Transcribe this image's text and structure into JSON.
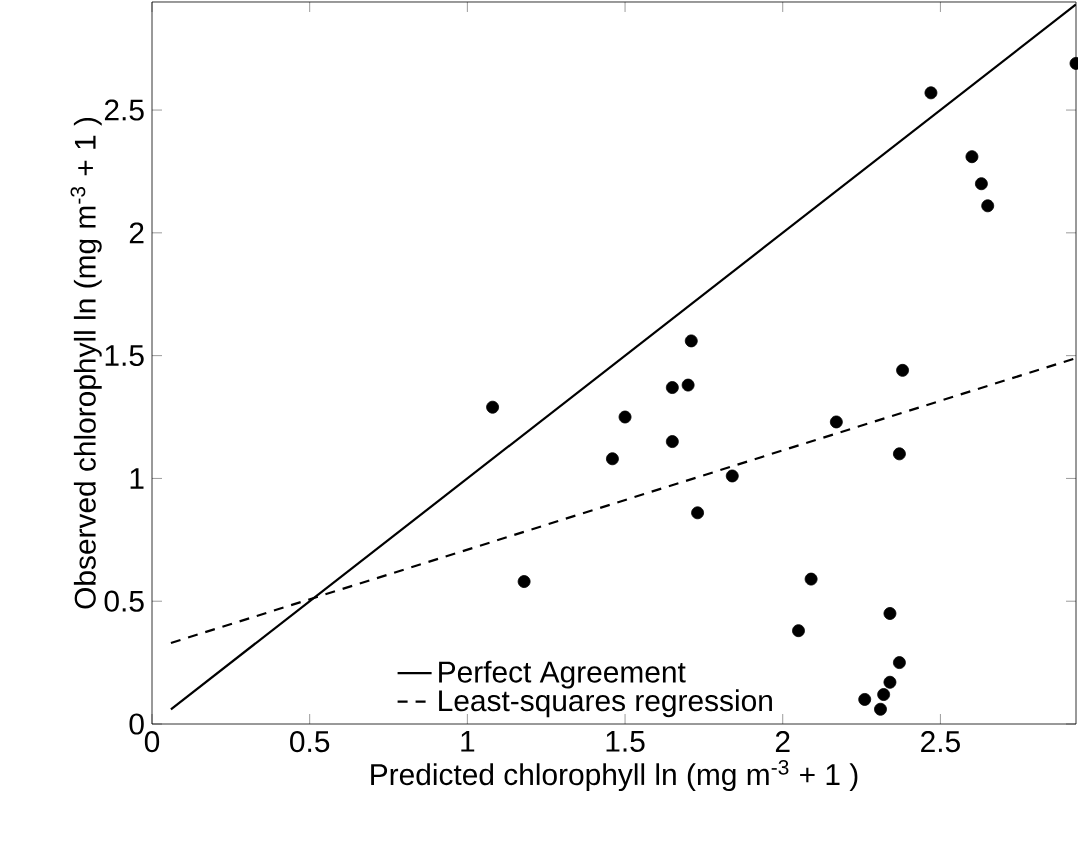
{
  "chart_data": {
    "type": "scatter",
    "xlabel": "Predicted chlorophyll ln (mg m$^{-3}$ + 1 )",
    "ylabel": "Observed chlorophyll ln (mg m$^{-3}$ + 1 )",
    "xlim": [
      0,
      2.93
    ],
    "ylim": [
      0,
      2.94
    ],
    "xticks": [
      0,
      0.5,
      1,
      1.5,
      2,
      2.5
    ],
    "yticks": [
      0,
      0.5,
      1,
      1.5,
      2,
      2.5
    ],
    "legend": "bottom right",
    "series": [
      {
        "color": "#000000",
        "marker": "circle",
        "x": [
          2.93,
          2.47,
          2.6,
          2.63,
          2.65,
          1.71,
          1.65,
          1.7,
          1.5,
          1.46,
          1.65,
          1.73,
          1.84,
          2.17,
          2.38,
          2.37,
          2.09,
          2.05,
          2.34,
          2.37,
          2.34,
          2.32,
          2.26,
          2.31,
          1.08,
          1.18
        ],
        "values": [
          2.69,
          2.57,
          2.31,
          2.2,
          2.11,
          1.56,
          1.37,
          1.38,
          1.25,
          1.08,
          1.15,
          0.86,
          1.01,
          1.23,
          1.44,
          1.1,
          0.59,
          0.38,
          0.45,
          0.25,
          0.17,
          0.12,
          0.1,
          0.06,
          1.29,
          0.58
        ]
      },
      {
        "type": "line",
        "name": "Perfect Agreement",
        "color": "#000000",
        "line_style": "solid",
        "x": [
          0.06,
          2.93
        ],
        "values": [
          0.06,
          2.93
        ]
      },
      {
        "type": "line",
        "name": "Least-squares regression",
        "color": "#000000",
        "line_style": "dashed",
        "x": [
          0.06,
          2.93
        ],
        "values": [
          0.33,
          1.49
        ]
      }
    ]
  }
}
